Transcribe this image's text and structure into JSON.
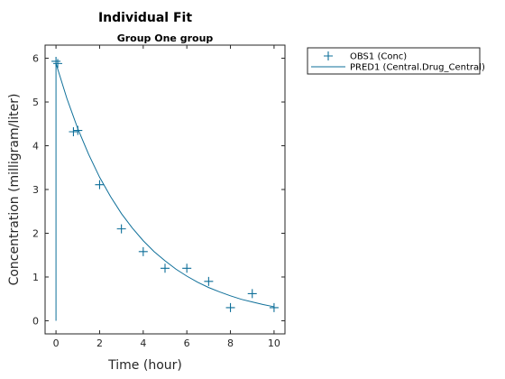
{
  "figure": {
    "title": "Individual Fit"
  },
  "chart_data": {
    "type": "line",
    "title": "Group One group",
    "xlabel": "Time (hour)",
    "ylabel": "Concentration (milligram/liter)",
    "xlim": [
      -0.5,
      10.5
    ],
    "ylim": [
      -0.3,
      6.3
    ],
    "xticks": [
      "0",
      "2",
      "4",
      "6",
      "8",
      "10"
    ],
    "yticks": [
      "0",
      "1",
      "2",
      "3",
      "4",
      "5",
      "6"
    ],
    "grid": false,
    "legend_position": "outside-right",
    "color": "#0e6f99",
    "series": [
      {
        "name": "OBS1 (Conc)",
        "kind": "scatter",
        "marker": "+",
        "points": [
          [
            0,
            5.93
          ],
          [
            0.08,
            5.88
          ],
          [
            0.8,
            4.32
          ],
          [
            1,
            4.35
          ],
          [
            2,
            3.11
          ],
          [
            3,
            2.1
          ],
          [
            4,
            1.58
          ],
          [
            5,
            1.2
          ],
          [
            6,
            1.2
          ],
          [
            7,
            0.9
          ],
          [
            8,
            0.3
          ],
          [
            9,
            0.62
          ],
          [
            10,
            0.3
          ]
        ]
      },
      {
        "name": "PRED1 (Central.Drug_Central)",
        "kind": "line",
        "points": [
          [
            0,
            0
          ],
          [
            0,
            5.88
          ],
          [
            0.5,
            5.08
          ],
          [
            1,
            4.39
          ],
          [
            1.5,
            3.8
          ],
          [
            2,
            3.28
          ],
          [
            2.5,
            2.84
          ],
          [
            3,
            2.45
          ],
          [
            3.5,
            2.12
          ],
          [
            4,
            1.83
          ],
          [
            4.5,
            1.58
          ],
          [
            5,
            1.37
          ],
          [
            5.5,
            1.18
          ],
          [
            6,
            1.02
          ],
          [
            6.5,
            0.88
          ],
          [
            7,
            0.76
          ],
          [
            7.5,
            0.66
          ],
          [
            8,
            0.57
          ],
          [
            8.5,
            0.49
          ],
          [
            9,
            0.43
          ],
          [
            9.5,
            0.37
          ],
          [
            10,
            0.32
          ]
        ]
      }
    ]
  }
}
